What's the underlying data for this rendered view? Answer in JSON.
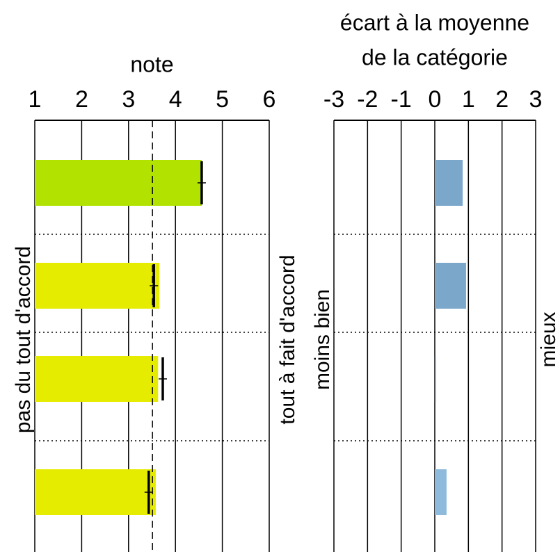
{
  "chart_data": [
    {
      "type": "bar",
      "orientation": "horizontal",
      "title": "note",
      "left_label": "pas du tout d'accord",
      "right_label": "tout à fait d'accord",
      "values": [
        4.56,
        3.66,
        3.63,
        3.58
      ],
      "colors": [
        "#b1e200",
        "#e6ec00",
        "#e6ec00",
        "#e6ec00"
      ],
      "markers": [
        4.56,
        3.54,
        3.73,
        3.43
      ],
      "reference_line": 3.51,
      "xlim": [
        1,
        6
      ],
      "xticks": [
        1,
        2,
        3,
        4,
        5,
        6
      ],
      "grid": true
    },
    {
      "type": "bar",
      "orientation": "horizontal",
      "title": [
        "écart à la moyenne",
        "de la catégorie"
      ],
      "left_label": "moins bien",
      "right_label": "mieux",
      "values": [
        0.83,
        0.93,
        0.04,
        0.35
      ],
      "colors": [
        "#7ba7cb",
        "#7ba7cb",
        "#7ba7cb",
        "#8ebadc"
      ],
      "xlim": [
        -3,
        3
      ],
      "xticks": [
        -3,
        -2,
        -1,
        0,
        1,
        2,
        3
      ],
      "grid": true
    }
  ]
}
